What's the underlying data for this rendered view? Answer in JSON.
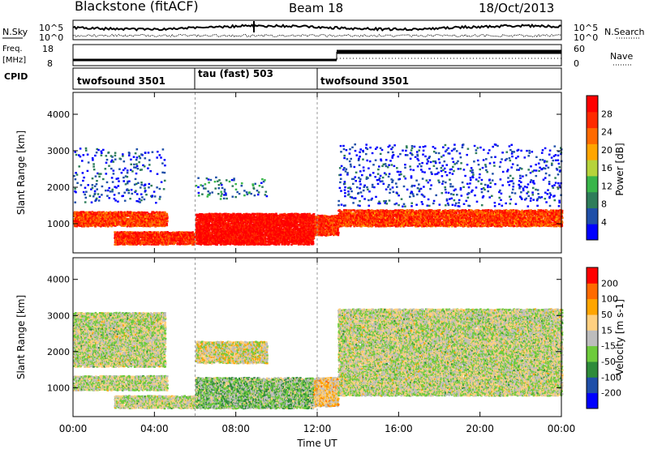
{
  "header": {
    "radar": "Blackstone (fitACF)",
    "beam": "Beam 18",
    "date": "18/Oct/2013"
  },
  "top_panel": {
    "left_label": "N.Sky",
    "left_ticks": [
      "10^5",
      "10^0"
    ],
    "right_label": "N.Search",
    "right_ticks": [
      "10^5",
      "10^0"
    ]
  },
  "freq_panel": {
    "left_label_1": "Freq.",
    "left_label_2": "[MHz]",
    "left_ticks": [
      "18",
      "8"
    ],
    "right_label": "Nave",
    "right_ticks": [
      "60",
      "0"
    ]
  },
  "cpid": {
    "label": "CPID",
    "segments": [
      "twofsound 3501",
      "tau (fast) 503",
      "twofsound 3501"
    ]
  },
  "colors": {
    "power": [
      "#0000ff",
      "#1f4fa8",
      "#2e7d5a",
      "#39b54a",
      "#b6d33b",
      "#ffa500",
      "#ff6a00",
      "#ff2a00",
      "#ff0000"
    ],
    "velocity": [
      "#0000ff",
      "#1f4fa8",
      "#2e8b3a",
      "#6ecb3c",
      "#bdbdbd",
      "#ffd080",
      "#ffa500",
      "#ff6a00",
      "#ff0000"
    ]
  },
  "chart_data": [
    {
      "type": "heatmap",
      "panel": "power",
      "ylabel": "Slant Range [km]",
      "xlabel": "Time UT",
      "x_ticks": [
        "00:00",
        "04:00",
        "08:00",
        "12:00",
        "16:00",
        "20:00",
        "00:00"
      ],
      "y_ticks": [
        "1000",
        "2000",
        "3000",
        "4000"
      ],
      "ylim": [
        200,
        4600
      ],
      "xlim": [
        0,
        24
      ],
      "colorbar_label": "Power [dB]",
      "colorbar_ticks": [
        "28",
        "24",
        "20",
        "16",
        "12",
        "8",
        "4"
      ],
      "colorbar_range": [
        0,
        30
      ],
      "bands": [
        {
          "t0": 0.0,
          "t1": 4.6,
          "r0": 950,
          "r1": 1350,
          "level": 0.82
        },
        {
          "t0": 2.0,
          "t1": 6.0,
          "r0": 450,
          "r1": 800,
          "level": 0.85
        },
        {
          "t0": 6.0,
          "t1": 11.8,
          "r0": 450,
          "r1": 1300,
          "level": 0.95
        },
        {
          "t0": 11.8,
          "t1": 13.0,
          "r0": 700,
          "r1": 1250,
          "level": 0.85
        },
        {
          "t0": 13.0,
          "t1": 24.0,
          "r0": 950,
          "r1": 1400,
          "level": 0.82
        },
        {
          "t0": 0.0,
          "t1": 4.5,
          "r0": 1600,
          "r1": 3100,
          "level": 0.15
        },
        {
          "t0": 6.0,
          "t1": 9.5,
          "r0": 1700,
          "r1": 2300,
          "level": 0.25
        },
        {
          "t0": 13.0,
          "t1": 24.0,
          "r0": 1500,
          "r1": 3200,
          "level": 0.1
        }
      ]
    },
    {
      "type": "heatmap",
      "panel": "velocity",
      "ylabel": "Slant Range [km]",
      "xlabel": "Time UT",
      "x_ticks": [
        "00:00",
        "04:00",
        "08:00",
        "12:00",
        "16:00",
        "20:00",
        "00:00"
      ],
      "y_ticks": [
        "1000",
        "2000",
        "3000",
        "4000"
      ],
      "ylim": [
        200,
        4600
      ],
      "xlim": [
        0,
        24
      ],
      "colorbar_label": "Velocity [m s-1]",
      "colorbar_ticks": [
        "200",
        "100",
        "50",
        "15",
        "-15",
        "-50",
        "-100",
        "-200"
      ],
      "colorbar_range": [
        -250,
        250
      ],
      "bands": [
        {
          "t0": 0.0,
          "t1": 4.6,
          "r0": 950,
          "r1": 1350,
          "level": 0.5
        },
        {
          "t0": 2.0,
          "t1": 6.0,
          "r0": 450,
          "r1": 800,
          "level": 0.5
        },
        {
          "t0": 6.0,
          "t1": 11.8,
          "r0": 450,
          "r1": 1300,
          "level": 0.42
        },
        {
          "t0": 11.8,
          "t1": 13.0,
          "r0": 500,
          "r1": 1300,
          "level": 0.62
        },
        {
          "t0": 13.0,
          "t1": 24.0,
          "r0": 800,
          "r1": 1500,
          "level": 0.5
        },
        {
          "t0": 0.0,
          "t1": 4.5,
          "r0": 1600,
          "r1": 3100,
          "level": 0.5
        },
        {
          "t0": 6.0,
          "t1": 9.5,
          "r0": 1700,
          "r1": 2300,
          "level": 0.55
        },
        {
          "t0": 13.0,
          "t1": 24.0,
          "r0": 1500,
          "r1": 3200,
          "level": 0.5
        }
      ]
    }
  ]
}
